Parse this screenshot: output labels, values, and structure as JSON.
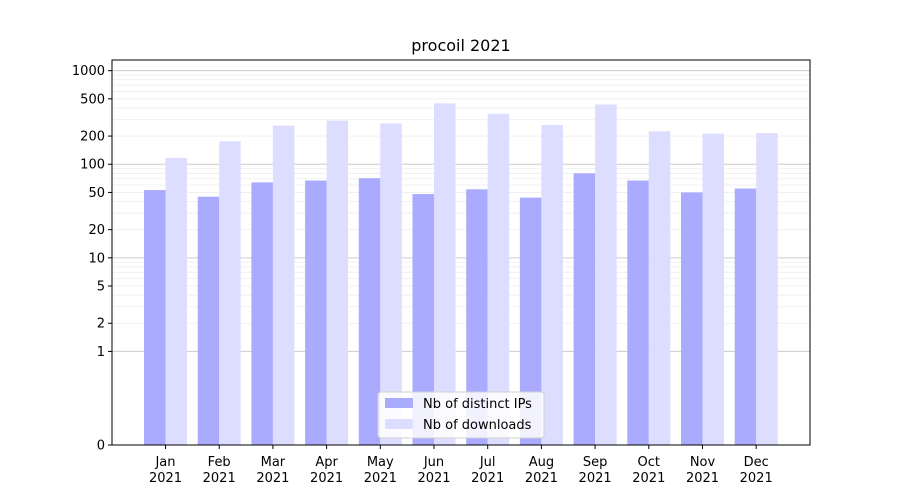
{
  "chart_data": {
    "type": "bar",
    "title": "procoil 2021",
    "xlabel": "",
    "ylabel": "",
    "categories": [
      "Jan\n2021",
      "Feb\n2021",
      "Mar\n2021",
      "Apr\n2021",
      "May\n2021",
      "Jun\n2021",
      "Jul\n2021",
      "Aug\n2021",
      "Sep\n2021",
      "Oct\n2021",
      "Nov\n2021",
      "Dec\n2021"
    ],
    "y_scale": "symlog",
    "y_ticks": [
      "0",
      "1",
      "2",
      "5",
      "10",
      "20",
      "50",
      "100",
      "200",
      "500",
      "1000"
    ],
    "ylim": [
      0,
      1300
    ],
    "grid": true,
    "legend_position": "lower center",
    "series": [
      {
        "name": "Nb of distinct IPs",
        "color": "#aaaaff",
        "values": [
          53,
          45,
          64,
          67,
          71,
          48,
          54,
          44,
          80,
          67,
          50,
          55
        ]
      },
      {
        "name": "Nb of downloads",
        "color": "#ddddff",
        "values": [
          117,
          176,
          259,
          293,
          273,
          447,
          346,
          263,
          435,
          225,
          212,
          215
        ]
      }
    ]
  }
}
